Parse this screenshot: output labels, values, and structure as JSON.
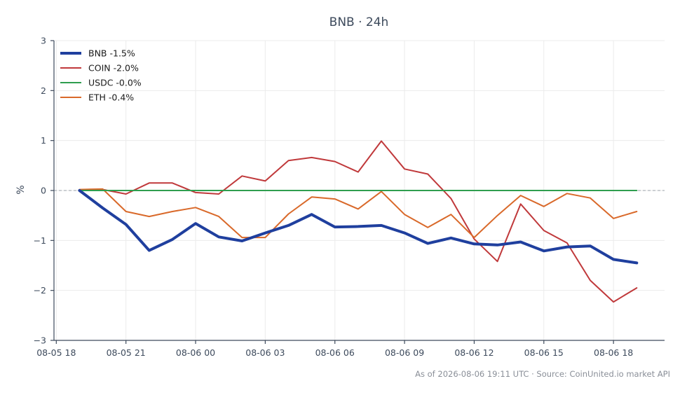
{
  "chart_data": {
    "type": "line",
    "title": "BNB · 24h",
    "xlabel": "",
    "ylabel": "%",
    "ylim": [
      -3,
      3
    ],
    "y_ticks": [
      3,
      2,
      1,
      0,
      -1,
      -2,
      -3
    ],
    "y_tick_labels": [
      "3",
      "2",
      "1",
      "0",
      "−1",
      "−2",
      "−3"
    ],
    "x_ticks": [
      "08-05 18",
      "08-05 21",
      "08-06 00",
      "08-06 03",
      "08-06 06",
      "08-06 09",
      "08-06 12",
      "08-06 15",
      "08-06 18"
    ],
    "x_tick_hours": [
      0,
      3,
      6,
      9,
      12,
      15,
      18,
      21,
      24
    ],
    "x_hours": [
      1,
      2,
      3,
      4,
      5,
      6,
      7,
      8,
      9,
      10,
      11,
      12,
      13,
      14,
      15,
      16,
      17,
      18,
      19,
      20,
      21,
      22,
      23,
      24,
      25
    ],
    "xlim_hours": [
      -0.1,
      26.2
    ],
    "zero_line": true,
    "grid": true,
    "legend_position": "top-left",
    "series": [
      {
        "name": "BNB -1.5%",
        "color": "#1f3f9e",
        "width": 4,
        "values": [
          0.0,
          -0.35,
          -0.68,
          -1.2,
          -0.98,
          -0.66,
          -0.93,
          -1.01,
          -0.85,
          -0.7,
          -0.48,
          -0.73,
          -0.72,
          -0.7,
          -0.85,
          -1.06,
          -0.95,
          -1.07,
          -1.09,
          -1.03,
          -1.21,
          -1.13,
          -1.11,
          -1.38,
          -1.45
        ]
      },
      {
        "name": "COIN -2.0%",
        "color": "#c0393b",
        "width": 2,
        "values": [
          0.0,
          0.02,
          -0.07,
          0.15,
          0.15,
          -0.04,
          -0.07,
          0.29,
          0.19,
          0.6,
          0.66,
          0.58,
          0.37,
          0.99,
          0.43,
          0.33,
          -0.16,
          -0.97,
          -1.42,
          -0.27,
          -0.8,
          -1.05,
          -1.8,
          -2.23,
          -1.95
        ]
      },
      {
        "name": "USDC -0.0%",
        "color": "#2f9e4f",
        "width": 2,
        "values": [
          0.0,
          0.0,
          0.0,
          0.0,
          0.0,
          0.0,
          0.0,
          0.0,
          0.0,
          0.0,
          0.0,
          0.0,
          0.0,
          0.0,
          0.0,
          0.0,
          0.0,
          0.0,
          0.0,
          0.0,
          0.0,
          0.0,
          0.0,
          0.0,
          0.0
        ]
      },
      {
        "name": "ETH -0.4%",
        "color": "#d9692a",
        "width": 2,
        "values": [
          0.02,
          0.03,
          -0.42,
          -0.52,
          -0.42,
          -0.34,
          -0.52,
          -0.94,
          -0.94,
          -0.47,
          -0.13,
          -0.17,
          -0.37,
          -0.02,
          -0.48,
          -0.74,
          -0.48,
          -0.94,
          -0.5,
          -0.1,
          -0.32,
          -0.06,
          -0.15,
          -0.56,
          -0.42
        ]
      }
    ]
  },
  "footer_text": "As of 2026-08-06 19:11 UTC · Source: CoinUnited.io market API"
}
